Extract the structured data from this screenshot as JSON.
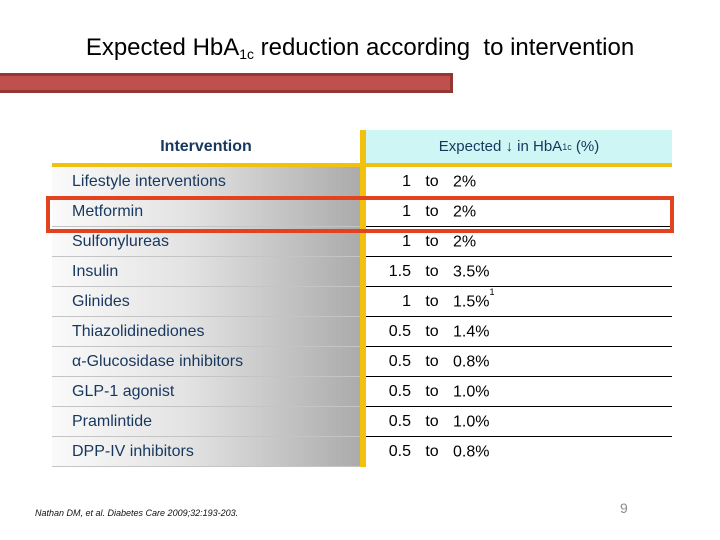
{
  "slide": {
    "title_pre": "Expected HbA",
    "title_sub": "1c",
    "title_post": " reduction according  to intervention",
    "footer": "Nathan DM, et al. Diabetes Care 2009;32:193-203.",
    "page_number": "9"
  },
  "table": {
    "to_word": "to",
    "header": {
      "intervention": "Intervention",
      "expected_pre": "Expected ↓ in HbA",
      "expected_sub": "1c",
      "expected_post": " (%)"
    },
    "highlighted_row": "Metformin",
    "rows": [
      {
        "intervention": "Lifestyle interventions",
        "from": "1",
        "to": "2%",
        "sup": ""
      },
      {
        "intervention": "Metformin",
        "from": "1",
        "to": "2%",
        "sup": ""
      },
      {
        "intervention": "Sulfonylureas",
        "from": "1",
        "to": "2%",
        "sup": ""
      },
      {
        "intervention": "Insulin",
        "from": "1.5",
        "to": "3.5%",
        "sup": ""
      },
      {
        "intervention": "Glinides",
        "from": "1",
        "to": "1.5%",
        "sup": "1"
      },
      {
        "intervention": "Thiazolidinediones",
        "from": "0.5",
        "to": "1.4%",
        "sup": ""
      },
      {
        "intervention": "α-Glucosidase inhibitors",
        "from": "0.5",
        "to": "0.8%",
        "sup": ""
      },
      {
        "intervention": "GLP-1 agonist",
        "from": "0.5",
        "to": "1.0%",
        "sup": ""
      },
      {
        "intervention": "Pramlintide",
        "from": "0.5",
        "to": "1.0%",
        "sup": ""
      },
      {
        "intervention": "DPP-IV inhibitors",
        "from": "0.5",
        "to": "0.8%",
        "sup": ""
      }
    ]
  },
  "colors": {
    "gold": "#F2C00E",
    "cyan": "#CDF6F5",
    "navy": "#17375E",
    "bar_fill": "#C0504D",
    "bar_border": "#943634",
    "highlight": "#E2431E",
    "page_gray": "#8C8C8C"
  }
}
